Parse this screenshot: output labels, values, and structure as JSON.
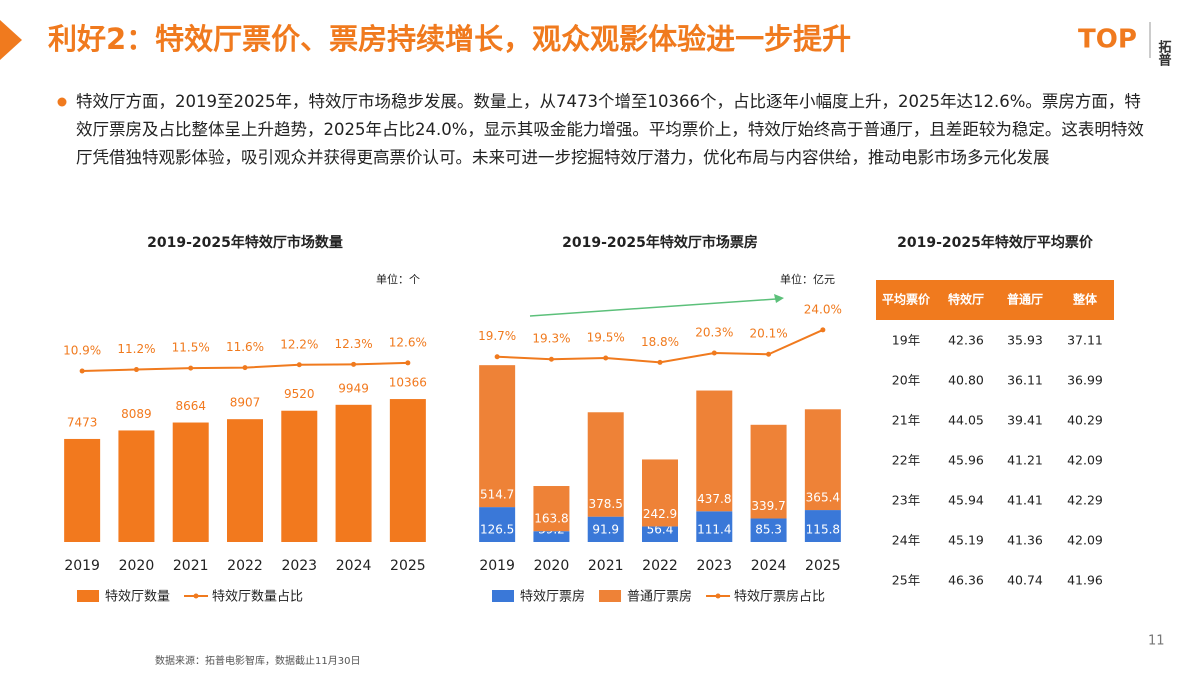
{
  "header": {
    "title": "利好2：特效厅票价、票房持续增长，观众观影体验进一步提升",
    "logo": "TOP",
    "logo_cn": "拓普"
  },
  "summary": "特效厅方面，2019至2025年，特效厅市场稳步发展。数量上，从7473个增至10366个，占比逐年小幅度上升，2025年达12.6%。票房方面，特效厅票房及占比整体呈上升趋势，2025年占比24.0%，显示其吸金能力增强。平均票价上，特效厅始终高于普通厅，且差距较为稳定。这表明特效厅凭借独特观影体验，吸引观众并获得更高票价认可。未来可进一步挖掘特效厅潜力，优化布局与内容供给，推动电影市场多元化发展",
  "chart_data": [
    {
      "type": "combo",
      "title": "2019-2025年特效厅市场数量",
      "unit": "单位：个",
      "categories": [
        "2019",
        "2020",
        "2021",
        "2022",
        "2023",
        "2024",
        "2025"
      ],
      "stacked": false,
      "ylim": [
        0,
        19000
      ],
      "y2lim": [
        -25,
        30
      ],
      "series": [
        {
          "name": "特效厅数量",
          "type": "bar",
          "color": "#f2791e",
          "values": [
            7473,
            8089,
            8664,
            8907,
            9520,
            9949,
            10366
          ]
        },
        {
          "name": "特效厅数量占比",
          "type": "line",
          "axis": "y2",
          "color": "#f07a1e",
          "values": [
            10.9,
            11.2,
            11.5,
            11.6,
            12.2,
            12.3,
            12.6
          ],
          "value_labels": [
            "10.9%",
            "11.2%",
            "11.5%",
            "11.6%",
            "12.2%",
            "12.3%",
            "12.6%"
          ]
        }
      ]
    },
    {
      "type": "combo",
      "title": "2019-2025年特效厅市场票房",
      "unit": "单位：亿元",
      "categories": [
        "2019",
        "2020",
        "2021",
        "2022",
        "2023",
        "2024",
        "2025"
      ],
      "stacked": true,
      "ylim": [
        0,
        950
      ],
      "y2lim": [
        -10,
        32
      ],
      "series": [
        {
          "name": "特效厅票房",
          "type": "bar",
          "color": "#3a78d8",
          "values": [
            126.5,
            39.2,
            91.9,
            56.4,
            111.4,
            85.3,
            115.8
          ]
        },
        {
          "name": "普通厅票房",
          "type": "bar",
          "color": "#ee8237",
          "values": [
            514.7,
            163.8,
            378.5,
            242.9,
            437.8,
            339.7,
            365.4
          ]
        },
        {
          "name": "特效厅票房占比",
          "type": "line",
          "axis": "y2",
          "color": "#f07a1e",
          "values": [
            19.7,
            19.3,
            19.5,
            18.8,
            20.3,
            20.1,
            24.0
          ],
          "value_labels": [
            "19.7%",
            "19.3%",
            "19.5%",
            "18.8%",
            "20.3%",
            "20.1%",
            "24.0%"
          ]
        }
      ]
    }
  ],
  "table": {
    "title": "2019-2025年特效厅平均票价",
    "columns": [
      "平均票价",
      "特效厅",
      "普通厅",
      "整体"
    ],
    "rows": [
      [
        "19年",
        "42.36",
        "35.93",
        "37.11"
      ],
      [
        "20年",
        "40.80",
        "36.11",
        "36.99"
      ],
      [
        "21年",
        "44.05",
        "39.41",
        "40.29"
      ],
      [
        "22年",
        "45.96",
        "41.21",
        "42.09"
      ],
      [
        "23年",
        "45.94",
        "41.41",
        "42.29"
      ],
      [
        "24年",
        "45.19",
        "41.36",
        "42.09"
      ],
      [
        "25年",
        "46.36",
        "40.74",
        "41.96"
      ]
    ]
  },
  "source": "数据来源：拓普电影智库，数据截止11月30日",
  "page_number": "11"
}
